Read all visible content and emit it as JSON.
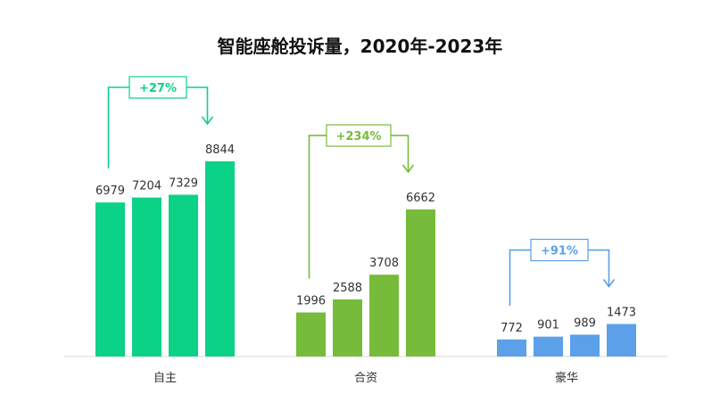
{
  "chart_data": {
    "type": "bar",
    "title": "智能座舱投诉量，2020年-2023年",
    "xlabel": "",
    "ylabel": "",
    "ylim": [
      0,
      9500
    ],
    "grid": false,
    "groups": [
      {
        "category": "自主",
        "color": "#0bd287",
        "values": [
          6979,
          7204,
          7329,
          8844
        ],
        "growth": "+27%"
      },
      {
        "category": "合资",
        "color": "#77bb3a",
        "values": [
          1996,
          2588,
          3708,
          6662
        ],
        "growth": "+234%"
      },
      {
        "category": "豪华",
        "color": "#5ba0e9",
        "values": [
          772,
          901,
          989,
          1473
        ],
        "growth": "+91%"
      }
    ]
  }
}
